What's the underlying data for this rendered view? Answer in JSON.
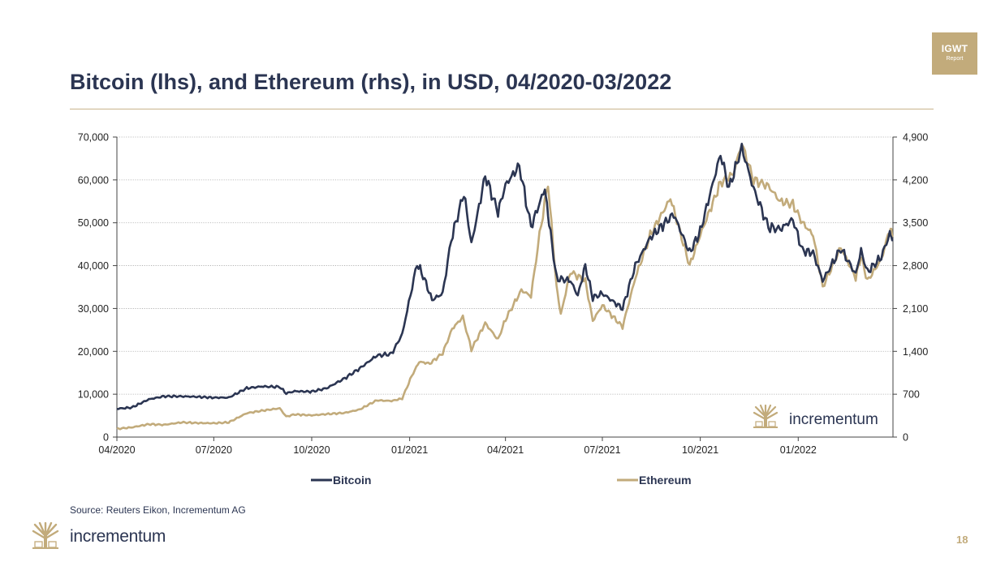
{
  "badge": {
    "line1": "IGWT",
    "line2": "Report"
  },
  "title": "Bitcoin (lhs), and Ethereum (rhs), in USD, 04/2020-03/2022",
  "source": "Source: Reuters Eikon, Incrementum AG",
  "brand": "incrementum",
  "page_number": "18",
  "colors": {
    "bitcoin": "#2b3552",
    "ethereum": "#c2ab7b",
    "grid": "#a9a9a9",
    "title_rule": "#c9b48c"
  },
  "chart_data": {
    "type": "line",
    "title": "Bitcoin (lhs), and Ethereum (rhs), in USD, 04/2020-03/2022",
    "x_range": [
      "2020-04-01",
      "2022-03-31"
    ],
    "x_ticks": [
      {
        "date": "2020-04-01",
        "label": "04/2020"
      },
      {
        "date": "2020-07-01",
        "label": "07/2020"
      },
      {
        "date": "2020-10-01",
        "label": "10/2020"
      },
      {
        "date": "2021-01-01",
        "label": "01/2021"
      },
      {
        "date": "2021-04-01",
        "label": "04/2021"
      },
      {
        "date": "2021-07-01",
        "label": "07/2021"
      },
      {
        "date": "2021-10-01",
        "label": "10/2021"
      },
      {
        "date": "2022-01-01",
        "label": "01/2022"
      }
    ],
    "y_left": {
      "min": 0,
      "max": 70000,
      "ticks": [
        0,
        10000,
        20000,
        30000,
        40000,
        50000,
        60000,
        70000
      ],
      "tick_labels": [
        "0",
        "10,000",
        "20,000",
        "30,000",
        "40,000",
        "50,000",
        "60,000",
        "70,000"
      ]
    },
    "y_right": {
      "min": 0,
      "max": 4900,
      "ticks": [
        0,
        700,
        1400,
        2100,
        2800,
        3500,
        4200,
        4900
      ],
      "tick_labels": [
        "0",
        "700",
        "1,400",
        "2,100",
        "2,800",
        "3,500",
        "4,200",
        "4,900"
      ]
    },
    "grid": true,
    "legend_position": "bottom",
    "series": [
      {
        "name": "Bitcoin",
        "axis": "left",
        "color": "#2b3552",
        "points": [
          [
            "2020-04-01",
            6600
          ],
          [
            "2020-04-15",
            6900
          ],
          [
            "2020-05-01",
            8800
          ],
          [
            "2020-05-15",
            9500
          ],
          [
            "2020-06-01",
            9500
          ],
          [
            "2020-06-15",
            9400
          ],
          [
            "2020-07-01",
            9200
          ],
          [
            "2020-07-15",
            9200
          ],
          [
            "2020-08-01",
            11400
          ],
          [
            "2020-08-15",
            11800
          ],
          [
            "2020-09-01",
            11700
          ],
          [
            "2020-09-07",
            10200
          ],
          [
            "2020-09-15",
            10700
          ],
          [
            "2020-10-01",
            10600
          ],
          [
            "2020-10-15",
            11400
          ],
          [
            "2020-11-01",
            13700
          ],
          [
            "2020-11-15",
            16000
          ],
          [
            "2020-12-01",
            19000
          ],
          [
            "2020-12-15",
            19400
          ],
          [
            "2020-12-25",
            24000
          ],
          [
            "2021-01-08",
            40500
          ],
          [
            "2021-01-15",
            36800
          ],
          [
            "2021-01-22",
            32000
          ],
          [
            "2021-02-01",
            33500
          ],
          [
            "2021-02-09",
            46000
          ],
          [
            "2021-02-21",
            57000
          ],
          [
            "2021-02-28",
            45000
          ],
          [
            "2021-03-13",
            61000
          ],
          [
            "2021-03-25",
            52500
          ],
          [
            "2021-04-01",
            58800
          ],
          [
            "2021-04-14",
            63300
          ],
          [
            "2021-04-25",
            49000
          ],
          [
            "2021-05-08",
            58000
          ],
          [
            "2021-05-12",
            50000
          ],
          [
            "2021-05-19",
            37000
          ],
          [
            "2021-06-01",
            36500
          ],
          [
            "2021-06-08",
            33000
          ],
          [
            "2021-06-15",
            40000
          ],
          [
            "2021-06-22",
            32500
          ],
          [
            "2021-07-01",
            33500
          ],
          [
            "2021-07-20",
            30000
          ],
          [
            "2021-08-01",
            40000
          ],
          [
            "2021-08-15",
            46500
          ],
          [
            "2021-09-06",
            52000
          ],
          [
            "2021-09-21",
            43000
          ],
          [
            "2021-10-01",
            48000
          ],
          [
            "2021-10-20",
            66000
          ],
          [
            "2021-10-28",
            58000
          ],
          [
            "2021-11-09",
            67500
          ],
          [
            "2021-11-20",
            58000
          ],
          [
            "2021-12-04",
            49000
          ],
          [
            "2021-12-15",
            48500
          ],
          [
            "2021-12-27",
            50800
          ],
          [
            "2022-01-05",
            43500
          ],
          [
            "2022-01-15",
            43000
          ],
          [
            "2022-01-24",
            36500
          ],
          [
            "2022-02-10",
            44000
          ],
          [
            "2022-02-24",
            38000
          ],
          [
            "2022-03-01",
            43500
          ],
          [
            "2022-03-07",
            38500
          ],
          [
            "2022-03-20",
            42000
          ],
          [
            "2022-03-28",
            47500
          ],
          [
            "2022-03-31",
            46000
          ]
        ]
      },
      {
        "name": "Ethereum",
        "axis": "right",
        "color": "#c2ab7b",
        "points": [
          [
            "2020-04-01",
            135
          ],
          [
            "2020-04-15",
            158
          ],
          [
            "2020-05-01",
            210
          ],
          [
            "2020-05-15",
            200
          ],
          [
            "2020-06-01",
            240
          ],
          [
            "2020-06-15",
            230
          ],
          [
            "2020-07-01",
            226
          ],
          [
            "2020-07-15",
            240
          ],
          [
            "2020-08-01",
            390
          ],
          [
            "2020-08-15",
            430
          ],
          [
            "2020-09-01",
            470
          ],
          [
            "2020-09-07",
            335
          ],
          [
            "2020-09-15",
            370
          ],
          [
            "2020-10-01",
            355
          ],
          [
            "2020-10-15",
            375
          ],
          [
            "2020-11-01",
            395
          ],
          [
            "2020-11-15",
            450
          ],
          [
            "2020-12-01",
            600
          ],
          [
            "2020-12-15",
            590
          ],
          [
            "2020-12-25",
            630
          ],
          [
            "2021-01-03",
            1000
          ],
          [
            "2021-01-10",
            1230
          ],
          [
            "2021-01-20",
            1200
          ],
          [
            "2021-02-01",
            1370
          ],
          [
            "2021-02-10",
            1770
          ],
          [
            "2021-02-20",
            1960
          ],
          [
            "2021-02-28",
            1430
          ],
          [
            "2021-03-13",
            1860
          ],
          [
            "2021-03-25",
            1590
          ],
          [
            "2021-04-01",
            1920
          ],
          [
            "2021-04-16",
            2400
          ],
          [
            "2021-04-25",
            2300
          ],
          [
            "2021-05-03",
            3300
          ],
          [
            "2021-05-11",
            4150
          ],
          [
            "2021-05-19",
            2450
          ],
          [
            "2021-05-23",
            2000
          ],
          [
            "2021-06-01",
            2700
          ],
          [
            "2021-06-15",
            2550
          ],
          [
            "2021-06-22",
            1900
          ],
          [
            "2021-07-01",
            2150
          ],
          [
            "2021-07-20",
            1800
          ],
          [
            "2021-08-01",
            2600
          ],
          [
            "2021-08-15",
            3300
          ],
          [
            "2021-09-03",
            3900
          ],
          [
            "2021-09-21",
            2800
          ],
          [
            "2021-10-01",
            3300
          ],
          [
            "2021-10-20",
            4150
          ],
          [
            "2021-11-01",
            4300
          ],
          [
            "2021-11-09",
            4800
          ],
          [
            "2021-11-20",
            4200
          ],
          [
            "2021-12-04",
            4100
          ],
          [
            "2021-12-15",
            3850
          ],
          [
            "2021-12-27",
            3800
          ],
          [
            "2022-01-05",
            3500
          ],
          [
            "2022-01-15",
            3300
          ],
          [
            "2022-01-24",
            2450
          ],
          [
            "2022-02-10",
            3100
          ],
          [
            "2022-02-24",
            2600
          ],
          [
            "2022-03-01",
            2950
          ],
          [
            "2022-03-07",
            2550
          ],
          [
            "2022-03-20",
            2900
          ],
          [
            "2022-03-28",
            3400
          ],
          [
            "2022-03-31",
            3300
          ]
        ]
      }
    ]
  }
}
